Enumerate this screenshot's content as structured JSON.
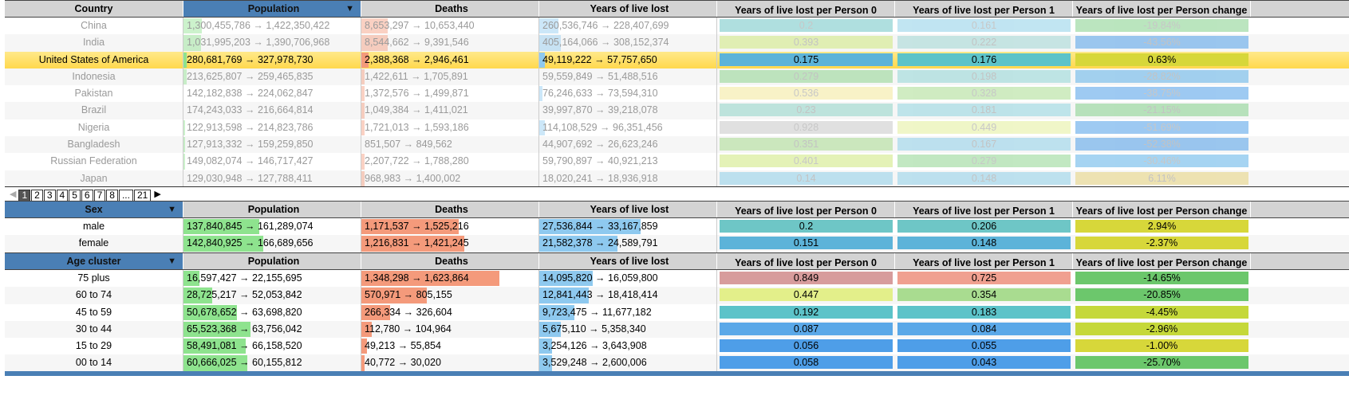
{
  "headers": {
    "country": "Country",
    "sex": "Sex",
    "age": "Age cluster",
    "population": "Population",
    "deaths": "Deaths",
    "yll": "Years of live lost",
    "yllpp0": "Years of live lost per Person 0",
    "yllpp1": "Years of live lost per Person 1",
    "yllchange": "Years of live lost per Person change",
    "sort_arrow": "▼"
  },
  "country_rows": [
    {
      "name": "China",
      "pop": "1,300,455,786 → 1,422,350,422",
      "pop_f": 0.105,
      "dth": "8,653,297 → 10,653,440",
      "dth_f": 0.15,
      "yll": "260,536,746 → 228,407,699",
      "yll_f": 0.11,
      "p0": "0.2",
      "p1": "0.161",
      "chg": "-19.84%",
      "p0c": "#6ec6c6",
      "p1c": "#8ecfe8",
      "chgc": "#83d08a",
      "faded": true
    },
    {
      "name": "India",
      "pop": "1,031,995,203 → 1,390,706,968",
      "pop_f": 0.1,
      "dth": "8,544,662 → 9,391,546",
      "dth_f": 0.15,
      "yll": "405,164,066 → 308,152,374",
      "yll_f": 0.12,
      "p0": "0.393",
      "p1": "0.222",
      "chg": "-43.56%",
      "p0c": "#cfe87e",
      "p1c": "#9ed6d3",
      "chgc": "#4e9ee8",
      "faded": true
    },
    {
      "name": "United States of America",
      "pop": "280,681,769 → 327,978,730",
      "pop_f": 0.02,
      "dth": "2,388,368 → 2,946,461",
      "dth_f": 0.04,
      "yll": "49,119,222 → 57,757,650",
      "yll_f": 0.03,
      "p0": "0.175",
      "p1": "0.176",
      "chg": "0.63%",
      "p0c": "#5cb3d9",
      "p1c": "#5cc3c9",
      "chgc": "#d7d73a",
      "faded": false,
      "highlight": true
    },
    {
      "name": "Indonesia",
      "pop": "213,625,807 → 259,465,835",
      "pop_f": 0.02,
      "dth": "1,422,611 → 1,705,891",
      "dth_f": 0.02,
      "yll": "59,559,849 → 51,488,516",
      "yll_f": 0.0,
      "p0": "0.279",
      "p1": "0.198",
      "chg": "-28.82%",
      "p0c": "#8fd58f",
      "p1c": "#8fd5d5",
      "chgc": "#5db1e8",
      "faded": true
    },
    {
      "name": "Pakistan",
      "pop": "142,182,838 → 224,062,847",
      "pop_f": 0.0,
      "dth": "1,372,576 → 1,499,871",
      "dth_f": 0.02,
      "yll": "76,246,633 → 73,594,310",
      "yll_f": 0.02,
      "p0": "0.536",
      "p1": "0.328",
      "chg": "-38.75%",
      "p0c": "#f3e99a",
      "p1c": "#a9dc90",
      "chgc": "#4e9ee8",
      "faded": true
    },
    {
      "name": "Brazil",
      "pop": "174,243,033 → 216,664,814",
      "pop_f": 0.0,
      "dth": "1,049,384 → 1,411,021",
      "dth_f": 0.02,
      "yll": "39,997,870 → 39,218,078",
      "yll_f": 0.0,
      "p0": "0.23",
      "p1": "0.181",
      "chg": "-21.15%",
      "p0c": "#8fd5c8",
      "p1c": "#8fd5e0",
      "chgc": "#83d08a",
      "faded": true
    },
    {
      "name": "Nigeria",
      "pop": "122,913,598 → 214,823,786",
      "pop_f": 0.01,
      "dth": "1,721,013 → 1,593,186",
      "dth_f": 0.02,
      "yll": "114,108,529 → 96,351,456",
      "yll_f": 0.03,
      "p0": "0.928",
      "p1": "0.449",
      "chg": "-51.69%",
      "p0c": "#c8c8c8",
      "p1c": "#e3ef9a",
      "chgc": "#4e9ee8",
      "faded": true
    },
    {
      "name": "Bangladesh",
      "pop": "127,913,332 → 159,259,850",
      "pop_f": 0.01,
      "dth": "851,507 → 849,562",
      "dth_f": 0.0,
      "yll": "44,907,692 → 26,623,246",
      "yll_f": 0.0,
      "p0": "0.351",
      "p1": "0.167",
      "chg": "-52.38%",
      "p0c": "#a9dc90",
      "p1c": "#8ecfe8",
      "chgc": "#4e9ee8",
      "faded": true
    },
    {
      "name": "Russian Federation",
      "pop": "149,082,074 → 146,717,427",
      "pop_f": 0.01,
      "dth": "2,207,722 → 1,788,280",
      "dth_f": 0.02,
      "yll": "59,790,897 → 40,921,213",
      "yll_f": 0.0,
      "p0": "0.401",
      "p1": "0.279",
      "chg": "-30.46%",
      "p0c": "#cfe87e",
      "p1c": "#8fd58f",
      "chgc": "#5db1e8",
      "faded": true
    },
    {
      "name": "Japan",
      "pop": "129,030,948 → 127,788,411",
      "pop_f": 0.0,
      "dth": "968,983 → 1,400,002",
      "dth_f": 0.02,
      "yll": "18,020,241 → 18,936,918",
      "yll_f": 0.0,
      "p0": "0.14",
      "p1": "0.148",
      "chg": "6.11%",
      "p0c": "#8ecfe8",
      "p1c": "#8ecfe8",
      "chgc": "#e6d27a",
      "faded": true
    }
  ],
  "pager": {
    "prev": "◀",
    "pages": [
      "1",
      "2",
      "3",
      "4",
      "5",
      "6",
      "7",
      "8",
      "...",
      "21"
    ],
    "current": "1",
    "next": "▶"
  },
  "sex_rows": [
    {
      "name": "male",
      "pop": "137,840,845 → 161,289,074",
      "pop_f": 0.43,
      "dth": "1,171,537 → 1,525,216",
      "dth_f": 0.55,
      "yll": "27,536,844 → 33,167,859",
      "yll_f": 0.57,
      "p0": "0.2",
      "p1": "0.206",
      "chg": "2.94%",
      "p0c": "#6ec6c6",
      "p1c": "#6ec6c6",
      "chgc": "#d7d73a"
    },
    {
      "name": "female",
      "pop": "142,840,925 → 166,689,656",
      "pop_f": 0.45,
      "dth": "1,216,831 → 1,421,245",
      "dth_f": 0.58,
      "yll": "21,582,378 → 24,589,791",
      "yll_f": 0.44,
      "p0": "0.151",
      "p1": "0.148",
      "chg": "-2.37%",
      "p0c": "#5cb3d9",
      "p1c": "#5cb3d9",
      "chgc": "#d7d73a"
    }
  ],
  "age_rows": [
    {
      "name": "75 plus",
      "pop": "16,597,427 → 22,155,695",
      "pop_f": 0.09,
      "dth": "1,348,298 → 1,623,864",
      "dth_f": 0.78,
      "yll": "14,095,820 → 16,059,800",
      "yll_f": 0.3,
      "p0": "0.849",
      "p1": "0.725",
      "chg": "-14.65%",
      "p0c": "#d79c9c",
      "p1c": "#f0a090",
      "chgc": "#6cc76c"
    },
    {
      "name": "60 to 74",
      "pop": "28,725,217 → 52,053,842",
      "pop_f": 0.16,
      "dth": "570,971 → 805,155",
      "dth_f": 0.37,
      "yll": "12,841,443 → 18,418,414",
      "yll_f": 0.28,
      "p0": "0.447",
      "p1": "0.354",
      "chg": "-20.85%",
      "p0c": "#e3ef8a",
      "p1c": "#a9dc90",
      "chgc": "#6cc76c"
    },
    {
      "name": "45 to 59",
      "pop": "50,678,652 → 63,698,820",
      "pop_f": 0.3,
      "dth": "266,334 → 326,604",
      "dth_f": 0.16,
      "yll": "9,723,475 → 11,677,182",
      "yll_f": 0.2,
      "p0": "0.192",
      "p1": "0.183",
      "chg": "-4.45%",
      "p0c": "#5cc3c9",
      "p1c": "#5cc3c9",
      "chgc": "#c5d83a"
    },
    {
      "name": "30 to 44",
      "pop": "65,523,368 → 63,756,042",
      "pop_f": 0.38,
      "dth": "112,780 → 104,964",
      "dth_f": 0.06,
      "yll": "5,675,110 → 5,358,340",
      "yll_f": 0.12,
      "p0": "0.087",
      "p1": "0.084",
      "chg": "-2.96%",
      "p0c": "#5aa8e8",
      "p1c": "#5aa8e8",
      "chgc": "#c5d83a"
    },
    {
      "name": "15 to 29",
      "pop": "58,491,081 → 66,158,520",
      "pop_f": 0.35,
      "dth": "49,213 → 55,854",
      "dth_f": 0.03,
      "yll": "3,254,126 → 3,643,908",
      "yll_f": 0.07,
      "p0": "0.056",
      "p1": "0.055",
      "chg": "-1.00%",
      "p0c": "#4e9ee8",
      "p1c": "#4e9ee8",
      "chgc": "#d7d73a"
    },
    {
      "name": "00 to 14",
      "pop": "60,666,025 → 60,155,812",
      "pop_f": 0.36,
      "dth": "40,772 → 30,020",
      "dth_f": 0.02,
      "yll": "3,529,248 → 2,600,006",
      "yll_f": 0.07,
      "p0": "0.058",
      "p1": "0.043",
      "chg": "-25.70%",
      "p0c": "#4e9ee8",
      "p1c": "#4e9ee8",
      "chgc": "#6cc76c"
    }
  ]
}
